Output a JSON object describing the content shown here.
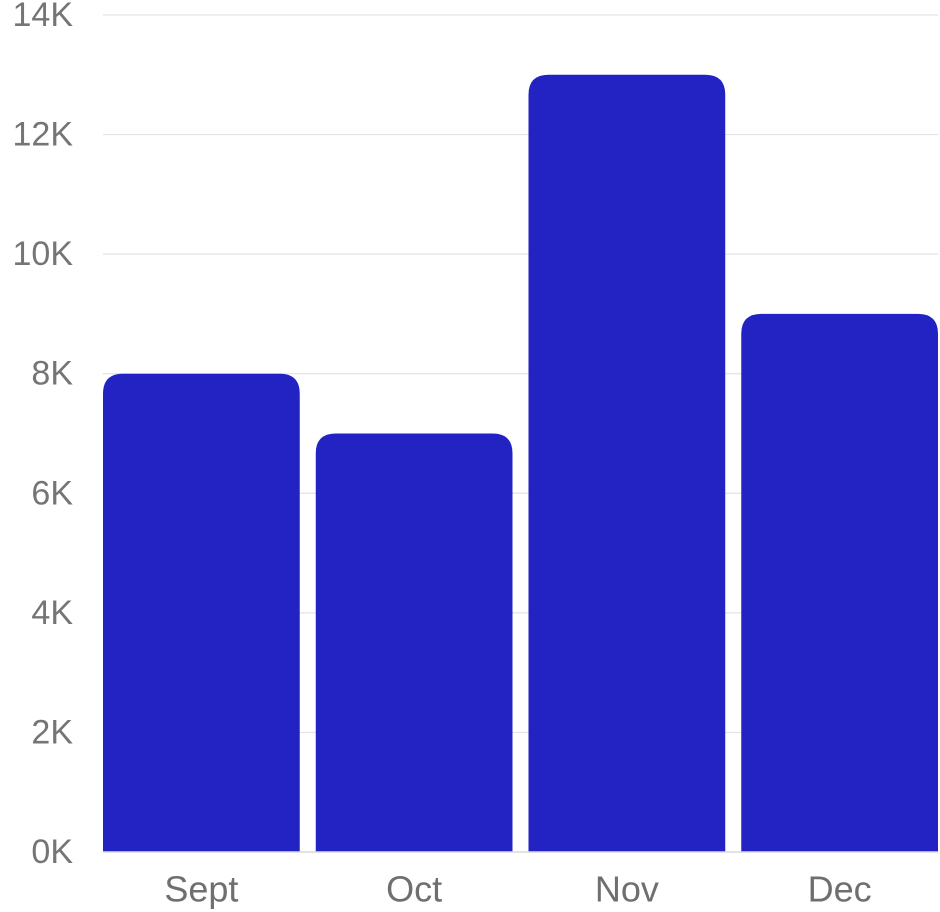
{
  "chart_data": {
    "type": "bar",
    "categories": [
      "Sept",
      "Oct",
      "Nov",
      "Dec"
    ],
    "values": [
      8000,
      7000,
      13000,
      9000
    ],
    "title": "",
    "xlabel": "",
    "ylabel": "",
    "ylim": [
      0,
      14000
    ],
    "y_ticks": [
      0,
      2000,
      4000,
      6000,
      8000,
      10000,
      12000,
      14000
    ],
    "y_tick_labels": [
      "0K",
      "2K",
      "4K",
      "6K",
      "8K",
      "10K",
      "12K",
      "14K"
    ],
    "grid": true,
    "legend": "none",
    "colors": {
      "bar": "#2323c4",
      "grid": "#e3e3e3",
      "axis": "#d9d9d9",
      "tick_text": "#757575"
    }
  }
}
